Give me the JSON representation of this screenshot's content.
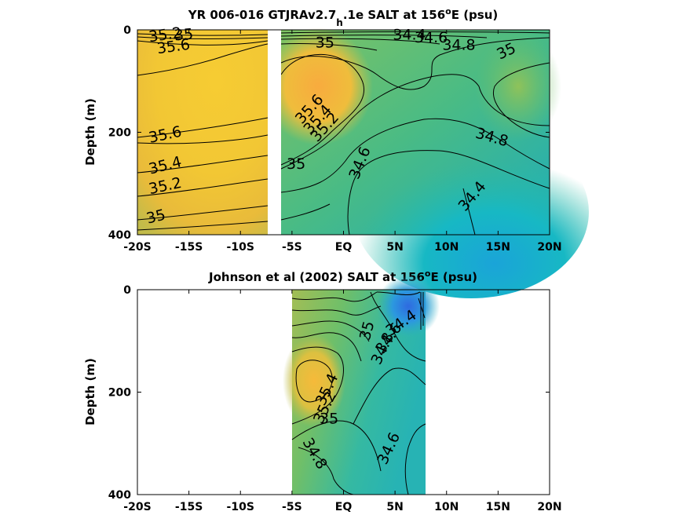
{
  "chart_data": [
    {
      "type": "heatmap",
      "title_main": "YR 006-016 GTJRAv2.7",
      "title_sub": "h",
      "title_mid": ".1e SALT at 156",
      "title_sup": "o",
      "title_end": "E (psu)",
      "ylabel": "Depth (m)",
      "xlim": [
        -20,
        20
      ],
      "ylim": [
        0,
        400
      ],
      "x_ticks": [
        -20,
        -15,
        -10,
        -5,
        0,
        5,
        10,
        15,
        20
      ],
      "x_tick_labels": [
        "-20S",
        "-15S",
        "-10S",
        "-5S",
        "EQ",
        "5N",
        "10N",
        "15N",
        "20N"
      ],
      "y_ticks": [
        0,
        200,
        400
      ],
      "y_tick_labels": [
        "0",
        "200",
        "400"
      ],
      "data_gap_lat": [
        -7.4,
        -6.4
      ],
      "contour_labels": [
        {
          "text": "35.2",
          "x": -17.3,
          "y": 10,
          "angle": -8
        },
        {
          "text": "35",
          "x": -15.5,
          "y": 10,
          "angle": -5
        },
        {
          "text": "35.6",
          "x": -16.5,
          "y": 33,
          "angle": -8
        },
        {
          "text": "35.6",
          "x": -17.3,
          "y": 205,
          "angle": -12
        },
        {
          "text": "35.4",
          "x": -17.3,
          "y": 265,
          "angle": -14
        },
        {
          "text": "35.2",
          "x": -17.3,
          "y": 305,
          "angle": -12
        },
        {
          "text": "35",
          "x": -18.2,
          "y": 365,
          "angle": -14
        },
        {
          "text": "35",
          "x": -1.8,
          "y": 25,
          "angle": 0
        },
        {
          "text": "34.4",
          "x": 6.4,
          "y": 10,
          "angle": 0
        },
        {
          "text": "34.6",
          "x": 8.5,
          "y": 15,
          "angle": 0
        },
        {
          "text": "34.8",
          "x": 11.2,
          "y": 30,
          "angle": 0
        },
        {
          "text": "35",
          "x": 15.8,
          "y": 42,
          "angle": -25
        },
        {
          "text": "35.6",
          "x": -3.3,
          "y": 155,
          "angle": -48
        },
        {
          "text": "35.4",
          "x": -2.5,
          "y": 175,
          "angle": -48
        },
        {
          "text": "35.2",
          "x": -1.8,
          "y": 190,
          "angle": -48
        },
        {
          "text": "35",
          "x": -4.6,
          "y": 262,
          "angle": 0
        },
        {
          "text": "34.6",
          "x": 1.6,
          "y": 260,
          "angle": -68
        },
        {
          "text": "34.8",
          "x": 14.4,
          "y": 210,
          "angle": 16
        },
        {
          "text": "34.4",
          "x": 12.5,
          "y": 325,
          "angle": -50
        }
      ]
    },
    {
      "type": "heatmap",
      "title_main": "Johnson et al (2002) SALT at 156",
      "title_sup": "o",
      "title_end": "E (psu)",
      "ylabel": "Depth (m)",
      "xlim": [
        -20,
        20
      ],
      "ylim": [
        0,
        400
      ],
      "x_ticks": [
        -20,
        -15,
        -10,
        -5,
        0,
        5,
        10,
        15,
        20
      ],
      "x_tick_labels": [
        "-20S",
        "-15S",
        "-10S",
        "-5S",
        "EQ",
        "5N",
        "10N",
        "15N",
        "20N"
      ],
      "y_ticks": [
        0,
        200,
        400
      ],
      "y_tick_labels": [
        "0",
        "200",
        "400"
      ],
      "data_range_lat": [
        -5,
        8
      ],
      "contour_labels": [
        {
          "text": "35",
          "x": 2.3,
          "y": 80,
          "angle": -75
        },
        {
          "text": "34.4",
          "x": 5.6,
          "y": 65,
          "angle": -35
        },
        {
          "text": "34.6",
          "x": 4.4,
          "y": 95,
          "angle": -55
        },
        {
          "text": "34.8",
          "x": 3.8,
          "y": 115,
          "angle": -65
        },
        {
          "text": "35.4",
          "x": -1.6,
          "y": 195,
          "angle": -65
        },
        {
          "text": "35.2",
          "x": -1.8,
          "y": 230,
          "angle": -65
        },
        {
          "text": "35",
          "x": -1.4,
          "y": 252,
          "angle": 0
        },
        {
          "text": "34.8",
          "x": -2.8,
          "y": 320,
          "angle": 60
        },
        {
          "text": "34.6",
          "x": 4.4,
          "y": 310,
          "angle": -65
        }
      ]
    }
  ]
}
